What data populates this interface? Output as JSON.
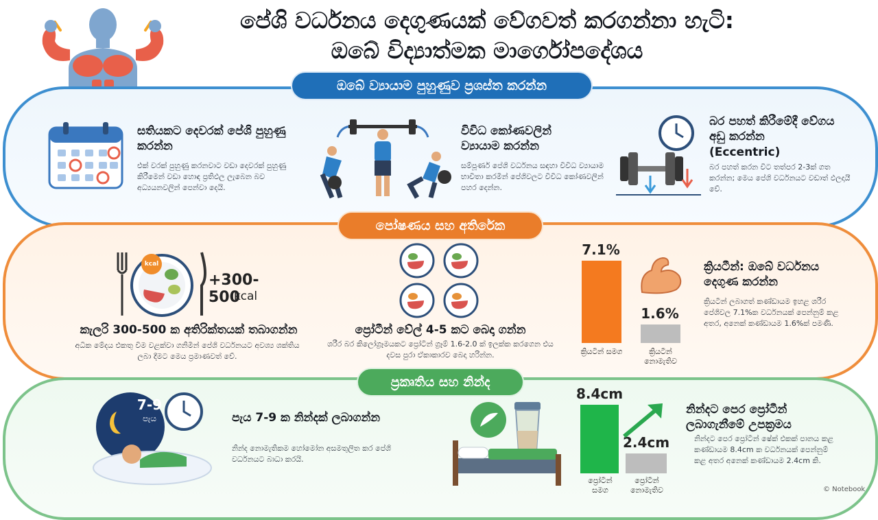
{
  "header": {
    "title_line1": "පේශි වර්ධනය දෙගුණයක් වේගවත් කරගන්නා හැටි:",
    "title_line2": "ඔබේ විද්‍යාත්මක මාර්ගෝපදේශය"
  },
  "training": {
    "label": "ඔබේ ව්‍යායාම පුහුණුව ප්‍රශස්ත කරන්න",
    "frequency": {
      "heading": "සතියකට දෙවරක් පේශි පුහුණු කරන්න",
      "body": "එක් වරක් පුහුණු කරනවාට වඩා දෙවරක් පුහුණු කිරීමෙන් වඩා හොඳ ප්‍රතිඵල ලැබෙන බව අධ්‍යයනවලින් පෙන්වා දෙයි."
    },
    "angles": {
      "heading": "විවිධ කෝණවලින් ව්‍යායාම කරන්න",
      "body": "සම්පූර්ණ පේශි වර්ධනය සඳහා විවිධ ව්‍යායාම භාවිතා කරමින් පේශිවලට විවිධ කෝණවලින් පහර දෙන්න."
    },
    "eccentric": {
      "heading": "බර පහත් කිරීමේදී වේගය අඩු කරන්න",
      "heading_en": "(Eccentric)",
      "body": "බර පහත් කරන විට තත්පර 2-3ක් ගත කරන්න; මෙය පේශි වර්ධනයට වඩාත් ඵලදායී වේ."
    }
  },
  "nutrition": {
    "label": "පෝෂණය සහ අතිරේක",
    "calorie_badge": "kcal",
    "calorie_value": "+300-500",
    "calorie_unit": "kcal",
    "calories": {
      "heading": "කැලරි 300-500 ක අතිරික්තයක් තබාගන්න",
      "body": "අධික මේදය එකතු වීම වළක්වා ගනිමින් පේශි වර්ධනයට අවශ්‍ය ශක්තිය ලබා දීමට මෙය ප්‍රමාණවත් වේ."
    },
    "protein": {
      "heading": "ප්‍රෝටීන් වේල් 4-5 කට බෙදා ගන්න",
      "body": "ශරීර බර කිලෝග්‍රෑමයකට ප්‍රෝටීන් ග්‍රෑම් 1.6-2.0 ක් ඉලක්ක කරගෙන එය දවස පුරා ඒකාකාරව බෙදා හරින්න."
    },
    "creatine": {
      "heading": "ක්‍රියටීන්: ඔබේ වර්ධනය දෙගුණ කරන්න",
      "body": "ක්‍රියටීන් ලබාගත් කණ්ඩායම ඉහළ ශරීර පේශිවල 7.1%ක වර්ධනයක් පෙන්නුම් කළ අතර, අනෙක් කණ්ඩායම 1.6%ක් පමණි."
    }
  },
  "recovery": {
    "label": "ප්‍රකෘතිය සහ නින්ද",
    "sleep_badge_hours": "7-9",
    "sleep_badge_unit": "පැය",
    "sleep": {
      "heading": "පැය 7-9 ක නින්දක් ලබාගන්න",
      "body": "නින්ද නොමැතිකම හෝමෝන අසමතුලිත කර පේශි වර්ධනයට බාධා කරයි."
    },
    "protein_sleep": {
      "heading": "නින්දට පෙර ප්‍රෝටීන් ලබාගැනීමේ උපක්‍රමය",
      "body": "නින්දට පෙර ප්‍රෝටීන් ෂේක් එකක් පානය කළ කණ්ඩායම 8.4cm ක වර්ධනයක් පෙන්නුම් කළ අතර අනෙක් කණ්ඩායම 2.4cm කි."
    }
  },
  "watermark": "© Notebook",
  "colors": {
    "blue": "#1f6fb8",
    "orange": "#ea7d2a",
    "green": "#4caa5c",
    "bar_orange": "#f47a1f",
    "bar_green": "#1fb54a",
    "bar_gray": "#bdbdbd"
  },
  "icons": [
    "muscle-man-icon",
    "calendar-icon",
    "barbell-exercise-icon",
    "dumbbell-clock-icon",
    "meal-plate-icon",
    "protein-plates-icon",
    "flexed-arm-icon",
    "sleep-moon-icon",
    "shake-bed-icon",
    "growth-arrow-icon"
  ],
  "chart_data": [
    {
      "type": "bar",
      "categories": [
        "ක්‍රියටීන් සමග",
        "ක්‍රියටීන් නොමැතිව"
      ],
      "values": [
        7.1,
        1.6
      ],
      "value_labels": [
        "7.1%",
        "1.6%"
      ],
      "ylim": [
        0,
        7.1
      ]
    },
    {
      "type": "bar",
      "categories": [
        "ප්‍රෝටීන් සමග",
        "ප්‍රෝටීන් නොමැතිව"
      ],
      "values": [
        8.4,
        2.4
      ],
      "value_labels": [
        "8.4cm",
        "2.4cm"
      ],
      "ylim": [
        0,
        8.4
      ]
    }
  ]
}
